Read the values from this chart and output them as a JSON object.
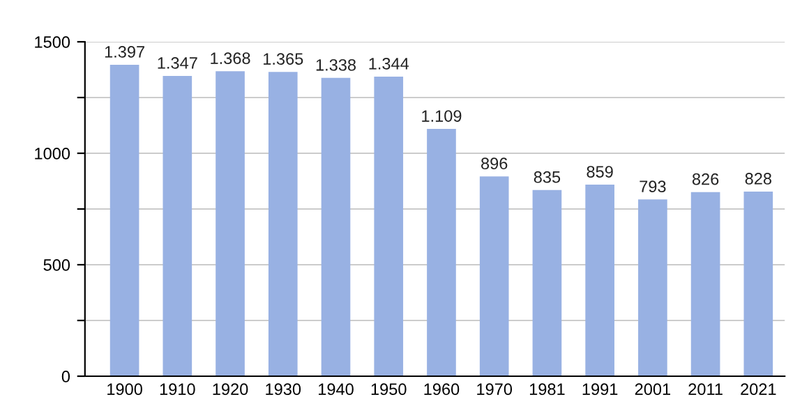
{
  "chart_data": {
    "type": "bar",
    "categories": [
      "1900",
      "1910",
      "1920",
      "1930",
      "1940",
      "1950",
      "1960",
      "1970",
      "1981",
      "1991",
      "2001",
      "2011",
      "2021"
    ],
    "values": [
      1397,
      1347,
      1368,
      1365,
      1338,
      1344,
      1109,
      896,
      835,
      859,
      793,
      826,
      828
    ],
    "value_labels": [
      "1.397",
      "1.347",
      "1.368",
      "1.365",
      "1.338",
      "1.344",
      "1.109",
      "896",
      "835",
      "859",
      "793",
      "826",
      "828"
    ],
    "color": "#98b1e3",
    "ylim": [
      0,
      1500
    ],
    "yticks": [
      0,
      {
        "value": 250,
        "label": null
      },
      500,
      {
        "value": 750,
        "label": null
      },
      1000,
      {
        "value": 1250,
        "label": null
      },
      1500
    ],
    "grid": "y"
  }
}
